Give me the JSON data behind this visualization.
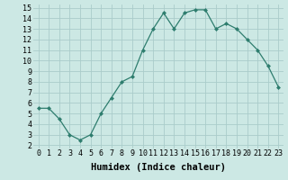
{
  "title": "",
  "xlabel": "Humidex (Indice chaleur)",
  "ylabel": "",
  "x_values": [
    0,
    1,
    2,
    3,
    4,
    5,
    6,
    7,
    8,
    9,
    10,
    11,
    12,
    13,
    14,
    15,
    16,
    17,
    18,
    19,
    20,
    21,
    22,
    23
  ],
  "y_values": [
    5.5,
    5.5,
    4.5,
    3.0,
    2.5,
    3.0,
    5.0,
    6.5,
    8.0,
    8.5,
    11.0,
    13.0,
    14.5,
    13.0,
    14.5,
    14.8,
    14.8,
    13.0,
    13.5,
    13.0,
    12.0,
    11.0,
    9.5,
    7.5
  ],
  "line_color": "#2e7d6e",
  "marker": "D",
  "marker_size": 2.0,
  "bg_color": "#cce8e4",
  "grid_color": "#aaccca",
  "ylim_min": 2,
  "ylim_max": 15,
  "yticks": [
    2,
    3,
    4,
    5,
    6,
    7,
    8,
    9,
    10,
    11,
    12,
    13,
    14,
    15
  ],
  "xlim_min": -0.5,
  "xlim_max": 23.5,
  "xlabel_fontsize": 7.5,
  "tick_fontsize": 6.0,
  "linewidth": 0.9
}
